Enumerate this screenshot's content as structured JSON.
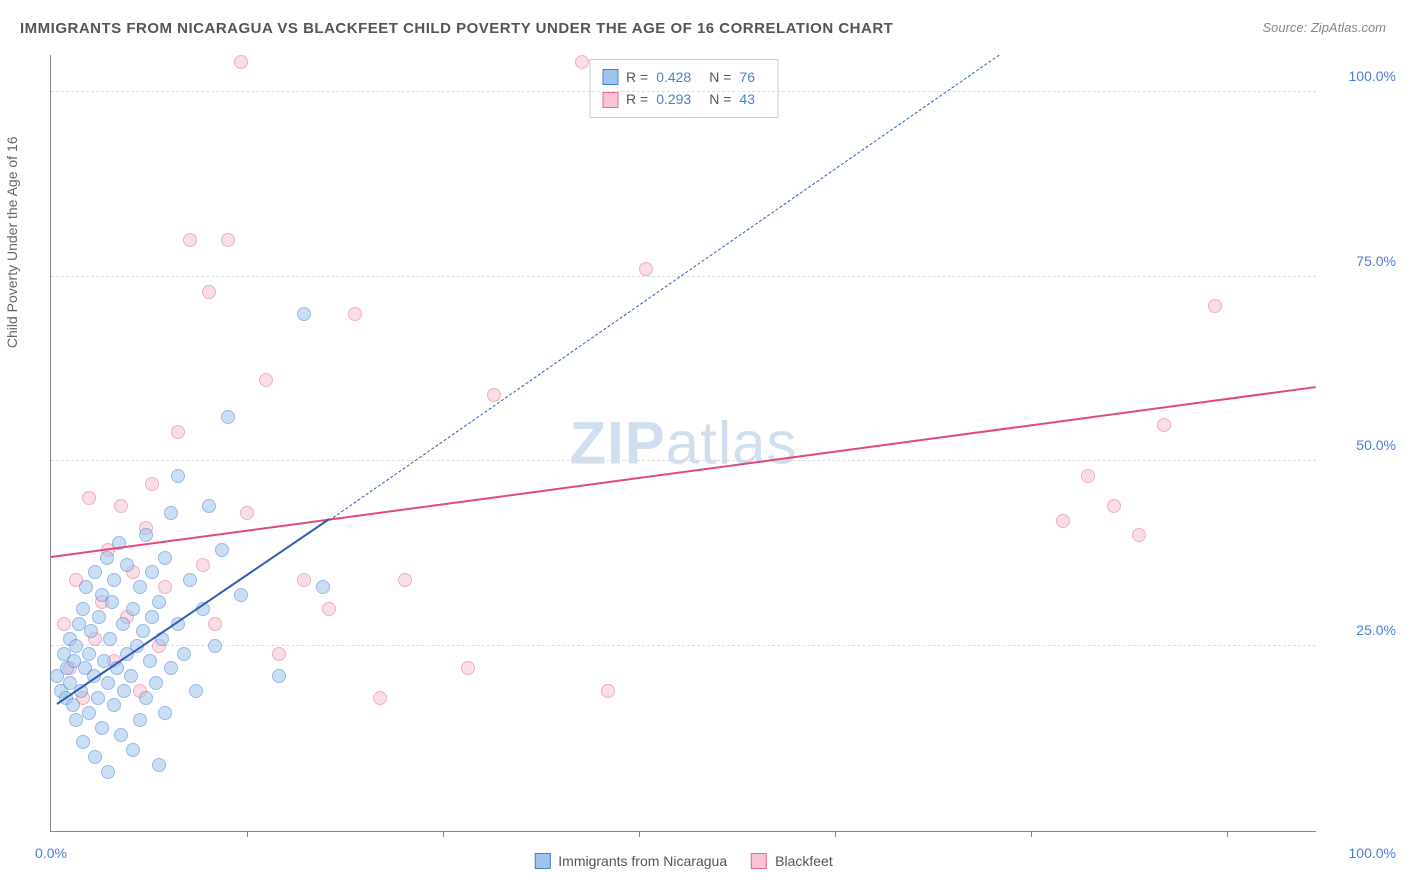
{
  "title": "IMMIGRANTS FROM NICARAGUA VS BLACKFEET CHILD POVERTY UNDER THE AGE OF 16 CORRELATION CHART",
  "source": "Source: ZipAtlas.com",
  "y_axis_label": "Child Poverty Under the Age of 16",
  "watermark_prefix": "ZIP",
  "watermark_suffix": "atlas",
  "chart": {
    "type": "scatter",
    "xlim": [
      0,
      100
    ],
    "ylim": [
      0,
      105
    ],
    "x_ticks": [
      0,
      100
    ],
    "x_tick_labels": [
      "0.0%",
      "100.0%"
    ],
    "x_minor_ticks": [
      15.5,
      31,
      46.5,
      62,
      77.5,
      93
    ],
    "y_ticks": [
      25,
      50,
      75,
      100
    ],
    "y_tick_labels": [
      "25.0%",
      "50.0%",
      "75.0%",
      "100.0%"
    ],
    "background_color": "#ffffff",
    "grid_color": "#dddddd",
    "axis_color": "#888888",
    "tick_label_color": "#4a7fd8",
    "tick_label_fontsize": 14,
    "point_radius": 7,
    "point_opacity": 0.55,
    "series": {
      "nicaragua": {
        "label": "Immigrants from Nicaragua",
        "fill": "#9fc4ec",
        "stroke": "#4a7fd8",
        "trend_color": "#2e5fb5",
        "R": "0.428",
        "N": "76",
        "trend_solid": {
          "x1": 0.5,
          "y1": 17,
          "x2": 22,
          "y2": 42
        },
        "trend_dash": {
          "x1": 22,
          "y1": 42,
          "x2": 75,
          "y2": 105
        },
        "points": [
          [
            0.5,
            21
          ],
          [
            0.8,
            19
          ],
          [
            1.0,
            24
          ],
          [
            1.2,
            18
          ],
          [
            1.3,
            22
          ],
          [
            1.5,
            20
          ],
          [
            1.5,
            26
          ],
          [
            1.7,
            17
          ],
          [
            1.8,
            23
          ],
          [
            2.0,
            25
          ],
          [
            2.0,
            15
          ],
          [
            2.2,
            28
          ],
          [
            2.4,
            19
          ],
          [
            2.5,
            30
          ],
          [
            2.5,
            12
          ],
          [
            2.7,
            22
          ],
          [
            2.8,
            33
          ],
          [
            3.0,
            24
          ],
          [
            3.0,
            16
          ],
          [
            3.2,
            27
          ],
          [
            3.4,
            21
          ],
          [
            3.5,
            35
          ],
          [
            3.5,
            10
          ],
          [
            3.7,
            18
          ],
          [
            3.8,
            29
          ],
          [
            4.0,
            32
          ],
          [
            4.0,
            14
          ],
          [
            4.2,
            23
          ],
          [
            4.4,
            37
          ],
          [
            4.5,
            20
          ],
          [
            4.5,
            8
          ],
          [
            4.7,
            26
          ],
          [
            4.8,
            31
          ],
          [
            5.0,
            34
          ],
          [
            5.0,
            17
          ],
          [
            5.2,
            22
          ],
          [
            5.4,
            39
          ],
          [
            5.5,
            13
          ],
          [
            5.7,
            28
          ],
          [
            5.8,
            19
          ],
          [
            6.0,
            24
          ],
          [
            6.0,
            36
          ],
          [
            6.3,
            21
          ],
          [
            6.5,
            30
          ],
          [
            6.5,
            11
          ],
          [
            6.8,
            25
          ],
          [
            7.0,
            33
          ],
          [
            7.0,
            15
          ],
          [
            7.3,
            27
          ],
          [
            7.5,
            40
          ],
          [
            7.5,
            18
          ],
          [
            7.8,
            23
          ],
          [
            8.0,
            29
          ],
          [
            8.0,
            35
          ],
          [
            8.3,
            20
          ],
          [
            8.5,
            31
          ],
          [
            8.5,
            9
          ],
          [
            8.8,
            26
          ],
          [
            9.0,
            37
          ],
          [
            9.0,
            16
          ],
          [
            9.5,
            22
          ],
          [
            9.5,
            43
          ],
          [
            10.0,
            28
          ],
          [
            10.0,
            48
          ],
          [
            10.5,
            24
          ],
          [
            11.0,
            34
          ],
          [
            11.5,
            19
          ],
          [
            12.0,
            30
          ],
          [
            12.5,
            44
          ],
          [
            13.0,
            25
          ],
          [
            13.5,
            38
          ],
          [
            14.0,
            56
          ],
          [
            15.0,
            32
          ],
          [
            18.0,
            21
          ],
          [
            20.0,
            70
          ],
          [
            21.5,
            33
          ]
        ]
      },
      "blackfeet": {
        "label": "Blackfeet",
        "fill": "#f6c4d3",
        "stroke": "#e86a92",
        "trend_color": "#e04a7a",
        "R": "0.293",
        "N": "43",
        "trend_solid": {
          "x1": 0,
          "y1": 37,
          "x2": 100,
          "y2": 60
        },
        "points": [
          [
            1.0,
            28
          ],
          [
            1.5,
            22
          ],
          [
            2.0,
            34
          ],
          [
            2.5,
            18
          ],
          [
            3.0,
            45
          ],
          [
            3.5,
            26
          ],
          [
            4.0,
            31
          ],
          [
            4.5,
            38
          ],
          [
            5.0,
            23
          ],
          [
            5.5,
            44
          ],
          [
            6.0,
            29
          ],
          [
            6.5,
            35
          ],
          [
            7.0,
            19
          ],
          [
            7.5,
            41
          ],
          [
            8.0,
            47
          ],
          [
            8.5,
            25
          ],
          [
            9.0,
            33
          ],
          [
            10.0,
            54
          ],
          [
            11.0,
            80
          ],
          [
            12.0,
            36
          ],
          [
            12.5,
            73
          ],
          [
            13.0,
            28
          ],
          [
            14.0,
            80
          ],
          [
            15.0,
            104
          ],
          [
            15.5,
            43
          ],
          [
            17.0,
            61
          ],
          [
            18.0,
            24
          ],
          [
            20.0,
            34
          ],
          [
            22.0,
            30
          ],
          [
            24.0,
            70
          ],
          [
            26.0,
            18
          ],
          [
            28.0,
            34
          ],
          [
            33.0,
            22
          ],
          [
            35.0,
            59
          ],
          [
            42.0,
            104
          ],
          [
            44.0,
            19
          ],
          [
            47.0,
            76
          ],
          [
            80.0,
            42
          ],
          [
            82.0,
            48
          ],
          [
            84.0,
            44
          ],
          [
            86.0,
            40
          ],
          [
            88.0,
            55
          ],
          [
            92.0,
            71
          ]
        ]
      }
    }
  },
  "legend_top": {
    "R_label": "R =",
    "N_label": "N ="
  }
}
